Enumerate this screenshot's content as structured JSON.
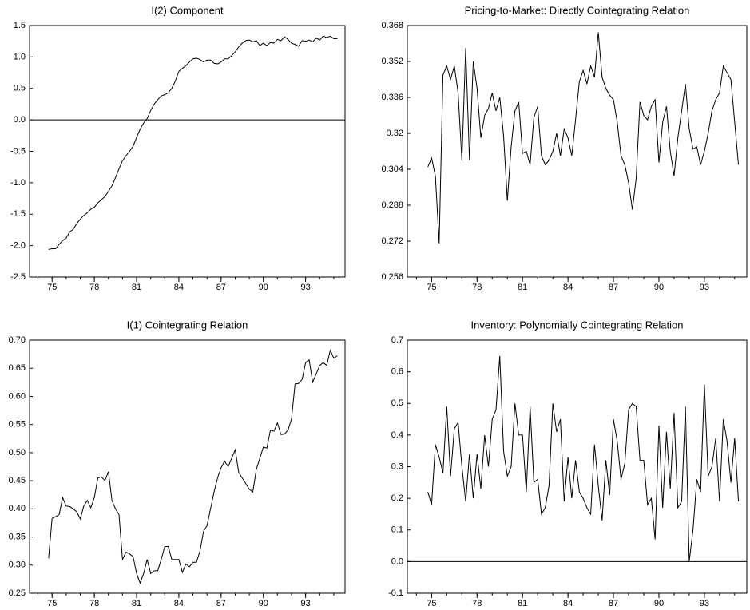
{
  "chart_data": [
    {
      "type": "line",
      "title": "I(2) Component",
      "color": "#000000",
      "zero_line": true,
      "xlim": [
        1973.4,
        1995.8
      ],
      "ylim": [
        -2.5,
        1.5
      ],
      "xticks": [
        {
          "value": 1975,
          "label": "75"
        },
        {
          "value": 1978,
          "label": "78"
        },
        {
          "value": 1981,
          "label": "81"
        },
        {
          "value": 1984,
          "label": "84"
        },
        {
          "value": 1987,
          "label": "87"
        },
        {
          "value": 1990,
          "label": "90"
        },
        {
          "value": 1993,
          "label": "93"
        }
      ],
      "yticks": [
        -2.5,
        {
          "value": -2.0,
          "label": "-2.0"
        },
        -1.5,
        {
          "value": -1.0,
          "label": "-1.0"
        },
        -0.5,
        {
          "value": 0,
          "label": "0.0"
        },
        0.5,
        {
          "value": 1.0,
          "label": "1.0"
        },
        1.5
      ],
      "x": [
        1974.75,
        1975,
        1975.25,
        1975.5,
        1975.75,
        1976,
        1976.25,
        1976.5,
        1976.75,
        1977,
        1977.25,
        1977.5,
        1977.75,
        1978,
        1978.25,
        1978.5,
        1978.75,
        1979,
        1979.25,
        1979.5,
        1979.75,
        1980,
        1980.25,
        1980.5,
        1980.75,
        1981,
        1981.25,
        1981.5,
        1981.75,
        1982,
        1982.25,
        1982.5,
        1982.75,
        1983,
        1983.25,
        1983.5,
        1983.75,
        1984,
        1984.25,
        1984.5,
        1984.75,
        1985,
        1985.25,
        1985.5,
        1985.75,
        1986,
        1986.25,
        1986.5,
        1986.75,
        1987,
        1987.25,
        1987.5,
        1987.75,
        1988,
        1988.25,
        1988.5,
        1988.75,
        1989,
        1989.25,
        1989.5,
        1989.75,
        1990,
        1990.25,
        1990.5,
        1990.75,
        1991,
        1991.25,
        1991.5,
        1991.75,
        1992,
        1992.25,
        1992.5,
        1992.75,
        1993,
        1993.25,
        1993.5,
        1993.75,
        1994,
        1994.25,
        1994.5,
        1994.75,
        1995,
        1995.25
      ],
      "values": [
        -2.06,
        -2.05,
        -2.05,
        -1.98,
        -1.92,
        -1.88,
        -1.78,
        -1.74,
        -1.65,
        -1.58,
        -1.52,
        -1.48,
        -1.42,
        -1.39,
        -1.32,
        -1.27,
        -1.22,
        -1.14,
        -1.05,
        -0.92,
        -0.78,
        -0.65,
        -0.57,
        -0.5,
        -0.42,
        -0.28,
        -0.15,
        -0.05,
        0.02,
        0.15,
        0.25,
        0.32,
        0.38,
        0.4,
        0.43,
        0.5,
        0.62,
        0.77,
        0.82,
        0.86,
        0.92,
        0.97,
        0.98,
        0.96,
        0.92,
        0.95,
        0.95,
        0.9,
        0.89,
        0.92,
        0.97,
        0.97,
        1.02,
        1.08,
        1.16,
        1.22,
        1.26,
        1.27,
        1.24,
        1.26,
        1.18,
        1.22,
        1.18,
        1.23,
        1.22,
        1.28,
        1.26,
        1.32,
        1.28,
        1.22,
        1.2,
        1.17,
        1.26,
        1.25,
        1.27,
        1.24,
        1.3,
        1.27,
        1.33,
        1.31,
        1.33,
        1.29,
        1.29
      ]
    },
    {
      "type": "line",
      "title": "Pricing-to-Market: Directly Cointegrating Relation",
      "color": "#000000",
      "zero_line": false,
      "xlim": [
        1973.4,
        1995.8
      ],
      "ylim": [
        0.256,
        0.368
      ],
      "xticks": [
        {
          "value": 1975,
          "label": "75"
        },
        {
          "value": 1978,
          "label": "78"
        },
        {
          "value": 1981,
          "label": "81"
        },
        {
          "value": 1984,
          "label": "84"
        },
        {
          "value": 1987,
          "label": "87"
        },
        {
          "value": 1990,
          "label": "90"
        },
        {
          "value": 1993,
          "label": "93"
        }
      ],
      "yticks": [
        0.256,
        0.272,
        0.288,
        0.304,
        0.32,
        0.336,
        0.352,
        0.368
      ],
      "x": [
        1974.75,
        1975,
        1975.25,
        1975.5,
        1975.75,
        1976,
        1976.25,
        1976.5,
        1976.75,
        1977,
        1977.25,
        1977.5,
        1977.75,
        1978,
        1978.25,
        1978.5,
        1978.75,
        1979,
        1979.25,
        1979.5,
        1979.75,
        1980,
        1980.25,
        1980.5,
        1980.75,
        1981,
        1981.25,
        1981.5,
        1981.75,
        1982,
        1982.25,
        1982.5,
        1982.75,
        1983,
        1983.25,
        1983.5,
        1983.75,
        1984,
        1984.25,
        1984.5,
        1984.75,
        1985,
        1985.25,
        1985.5,
        1985.75,
        1986,
        1986.25,
        1986.5,
        1986.75,
        1987,
        1987.25,
        1987.5,
        1987.75,
        1988,
        1988.25,
        1988.5,
        1988.75,
        1989,
        1989.25,
        1989.5,
        1989.75,
        1990,
        1990.25,
        1990.5,
        1990.75,
        1991,
        1991.25,
        1991.5,
        1991.75,
        1992,
        1992.25,
        1992.5,
        1992.75,
        1993,
        1993.25,
        1993.5,
        1993.75,
        1994,
        1994.25,
        1994.5,
        1994.75,
        1995,
        1995.25
      ],
      "values": [
        0.305,
        0.309,
        0.301,
        0.271,
        0.346,
        0.35,
        0.344,
        0.35,
        0.338,
        0.308,
        0.358,
        0.308,
        0.352,
        0.34,
        0.318,
        0.328,
        0.331,
        0.338,
        0.33,
        0.336,
        0.319,
        0.29,
        0.314,
        0.33,
        0.334,
        0.311,
        0.312,
        0.306,
        0.327,
        0.332,
        0.31,
        0.306,
        0.308,
        0.312,
        0.32,
        0.31,
        0.322,
        0.318,
        0.31,
        0.326,
        0.343,
        0.348,
        0.342,
        0.35,
        0.345,
        0.365,
        0.345,
        0.34,
        0.337,
        0.335,
        0.325,
        0.31,
        0.306,
        0.298,
        0.286,
        0.3,
        0.334,
        0.328,
        0.326,
        0.332,
        0.335,
        0.307,
        0.325,
        0.332,
        0.312,
        0.301,
        0.318,
        0.33,
        0.342,
        0.322,
        0.313,
        0.314,
        0.306,
        0.312,
        0.32,
        0.33,
        0.335,
        0.338,
        0.35,
        0.347,
        0.344,
        0.325,
        0.306
      ]
    },
    {
      "type": "line",
      "title": "I(1) Cointegrating Relation",
      "color": "#000000",
      "zero_line": false,
      "xlim": [
        1973.4,
        1995.8
      ],
      "ylim": [
        0.25,
        0.7
      ],
      "xticks": [
        {
          "value": 1975,
          "label": "75"
        },
        {
          "value": 1978,
          "label": "78"
        },
        {
          "value": 1981,
          "label": "81"
        },
        {
          "value": 1984,
          "label": "84"
        },
        {
          "value": 1987,
          "label": "87"
        },
        {
          "value": 1990,
          "label": "90"
        },
        {
          "value": 1993,
          "label": "93"
        }
      ],
      "yticks": [
        0.25,
        {
          "value": 0.3,
          "label": "0.30"
        },
        0.35,
        {
          "value": 0.4,
          "label": "0.40"
        },
        0.45,
        {
          "value": 0.5,
          "label": "0.50"
        },
        0.55,
        {
          "value": 0.6,
          "label": "0.60"
        },
        0.65,
        {
          "value": 0.7,
          "label": "0.70"
        }
      ],
      "x": [
        1974.75,
        1975,
        1975.25,
        1975.5,
        1975.75,
        1976,
        1976.25,
        1976.5,
        1976.75,
        1977,
        1977.25,
        1977.5,
        1977.75,
        1978,
        1978.25,
        1978.5,
        1978.75,
        1979,
        1979.25,
        1979.5,
        1979.75,
        1980,
        1980.25,
        1980.5,
        1980.75,
        1981,
        1981.25,
        1981.5,
        1981.75,
        1982,
        1982.25,
        1982.5,
        1982.75,
        1983,
        1983.25,
        1983.5,
        1983.75,
        1984,
        1984.25,
        1984.5,
        1984.75,
        1985,
        1985.25,
        1985.5,
        1985.75,
        1986,
        1986.25,
        1986.5,
        1986.75,
        1987,
        1987.25,
        1987.5,
        1987.75,
        1988,
        1988.25,
        1988.5,
        1988.75,
        1989,
        1989.25,
        1989.5,
        1989.75,
        1990,
        1990.25,
        1990.5,
        1990.75,
        1991,
        1991.25,
        1991.5,
        1991.75,
        1992,
        1992.25,
        1992.5,
        1992.75,
        1993,
        1993.25,
        1993.5,
        1993.75,
        1994,
        1994.25,
        1994.5,
        1994.75,
        1995,
        1995.25
      ],
      "values": [
        0.312,
        0.383,
        0.386,
        0.39,
        0.42,
        0.405,
        0.404,
        0.4,
        0.395,
        0.382,
        0.405,
        0.415,
        0.402,
        0.42,
        0.455,
        0.457,
        0.45,
        0.466,
        0.415,
        0.4,
        0.39,
        0.31,
        0.323,
        0.32,
        0.315,
        0.285,
        0.268,
        0.285,
        0.31,
        0.285,
        0.29,
        0.29,
        0.31,
        0.333,
        0.333,
        0.31,
        0.31,
        0.31,
        0.287,
        0.302,
        0.297,
        0.305,
        0.305,
        0.325,
        0.36,
        0.37,
        0.4,
        0.43,
        0.455,
        0.473,
        0.485,
        0.475,
        0.49,
        0.505,
        0.465,
        0.455,
        0.445,
        0.435,
        0.43,
        0.47,
        0.49,
        0.51,
        0.508,
        0.54,
        0.538,
        0.553,
        0.532,
        0.533,
        0.54,
        0.56,
        0.622,
        0.623,
        0.63,
        0.66,
        0.665,
        0.625,
        0.64,
        0.655,
        0.66,
        0.655,
        0.682,
        0.668,
        0.672
      ]
    },
    {
      "type": "line",
      "title": "Inventory: Polynomially Cointegrating Relation",
      "color": "#000000",
      "zero_line": true,
      "xlim": [
        1973.4,
        1995.8
      ],
      "ylim": [
        -0.1,
        0.7
      ],
      "xticks": [
        {
          "value": 1975,
          "label": "75"
        },
        {
          "value": 1978,
          "label": "78"
        },
        {
          "value": 1981,
          "label": "81"
        },
        {
          "value": 1984,
          "label": "84"
        },
        {
          "value": 1987,
          "label": "87"
        },
        {
          "value": 1990,
          "label": "90"
        },
        {
          "value": 1993,
          "label": "93"
        }
      ],
      "yticks": [
        -0.1,
        {
          "value": 0,
          "label": "0.0"
        },
        0.1,
        0.2,
        0.3,
        0.4,
        0.5,
        0.6,
        0.7
      ],
      "x": [
        1974.75,
        1975,
        1975.25,
        1975.5,
        1975.75,
        1976,
        1976.25,
        1976.5,
        1976.75,
        1977,
        1977.25,
        1977.5,
        1977.75,
        1978,
        1978.25,
        1978.5,
        1978.75,
        1979,
        1979.25,
        1979.5,
        1979.75,
        1980,
        1980.25,
        1980.5,
        1980.75,
        1981,
        1981.25,
        1981.5,
        1981.75,
        1982,
        1982.25,
        1982.5,
        1982.75,
        1983,
        1983.25,
        1983.5,
        1983.75,
        1984,
        1984.25,
        1984.5,
        1984.75,
        1985,
        1985.25,
        1985.5,
        1985.75,
        1986,
        1986.25,
        1986.5,
        1986.75,
        1987,
        1987.25,
        1987.5,
        1987.75,
        1988,
        1988.25,
        1988.5,
        1988.75,
        1989,
        1989.25,
        1989.5,
        1989.75,
        1990,
        1990.25,
        1990.5,
        1990.75,
        1991,
        1991.25,
        1991.5,
        1991.75,
        1992,
        1992.25,
        1992.5,
        1992.75,
        1993,
        1993.25,
        1993.5,
        1993.75,
        1994,
        1994.25,
        1994.5,
        1994.75,
        1995,
        1995.25
      ],
      "values": [
        0.22,
        0.18,
        0.37,
        0.33,
        0.28,
        0.49,
        0.27,
        0.42,
        0.44,
        0.3,
        0.19,
        0.34,
        0.2,
        0.34,
        0.23,
        0.4,
        0.3,
        0.45,
        0.48,
        0.65,
        0.35,
        0.27,
        0.3,
        0.5,
        0.4,
        0.4,
        0.22,
        0.49,
        0.25,
        0.26,
        0.15,
        0.17,
        0.24,
        0.5,
        0.41,
        0.45,
        0.19,
        0.33,
        0.2,
        0.32,
        0.22,
        0.2,
        0.17,
        0.15,
        0.37,
        0.24,
        0.13,
        0.32,
        0.21,
        0.45,
        0.38,
        0.26,
        0.31,
        0.48,
        0.5,
        0.49,
        0.32,
        0.32,
        0.18,
        0.2,
        0.07,
        0.43,
        0.17,
        0.41,
        0.23,
        0.47,
        0.17,
        0.19,
        0.49,
        0,
        0.1,
        0.26,
        0.22,
        0.56,
        0.27,
        0.3,
        0.39,
        0.19,
        0.45,
        0.38,
        0.25,
        0.39,
        0.19
      ]
    }
  ]
}
